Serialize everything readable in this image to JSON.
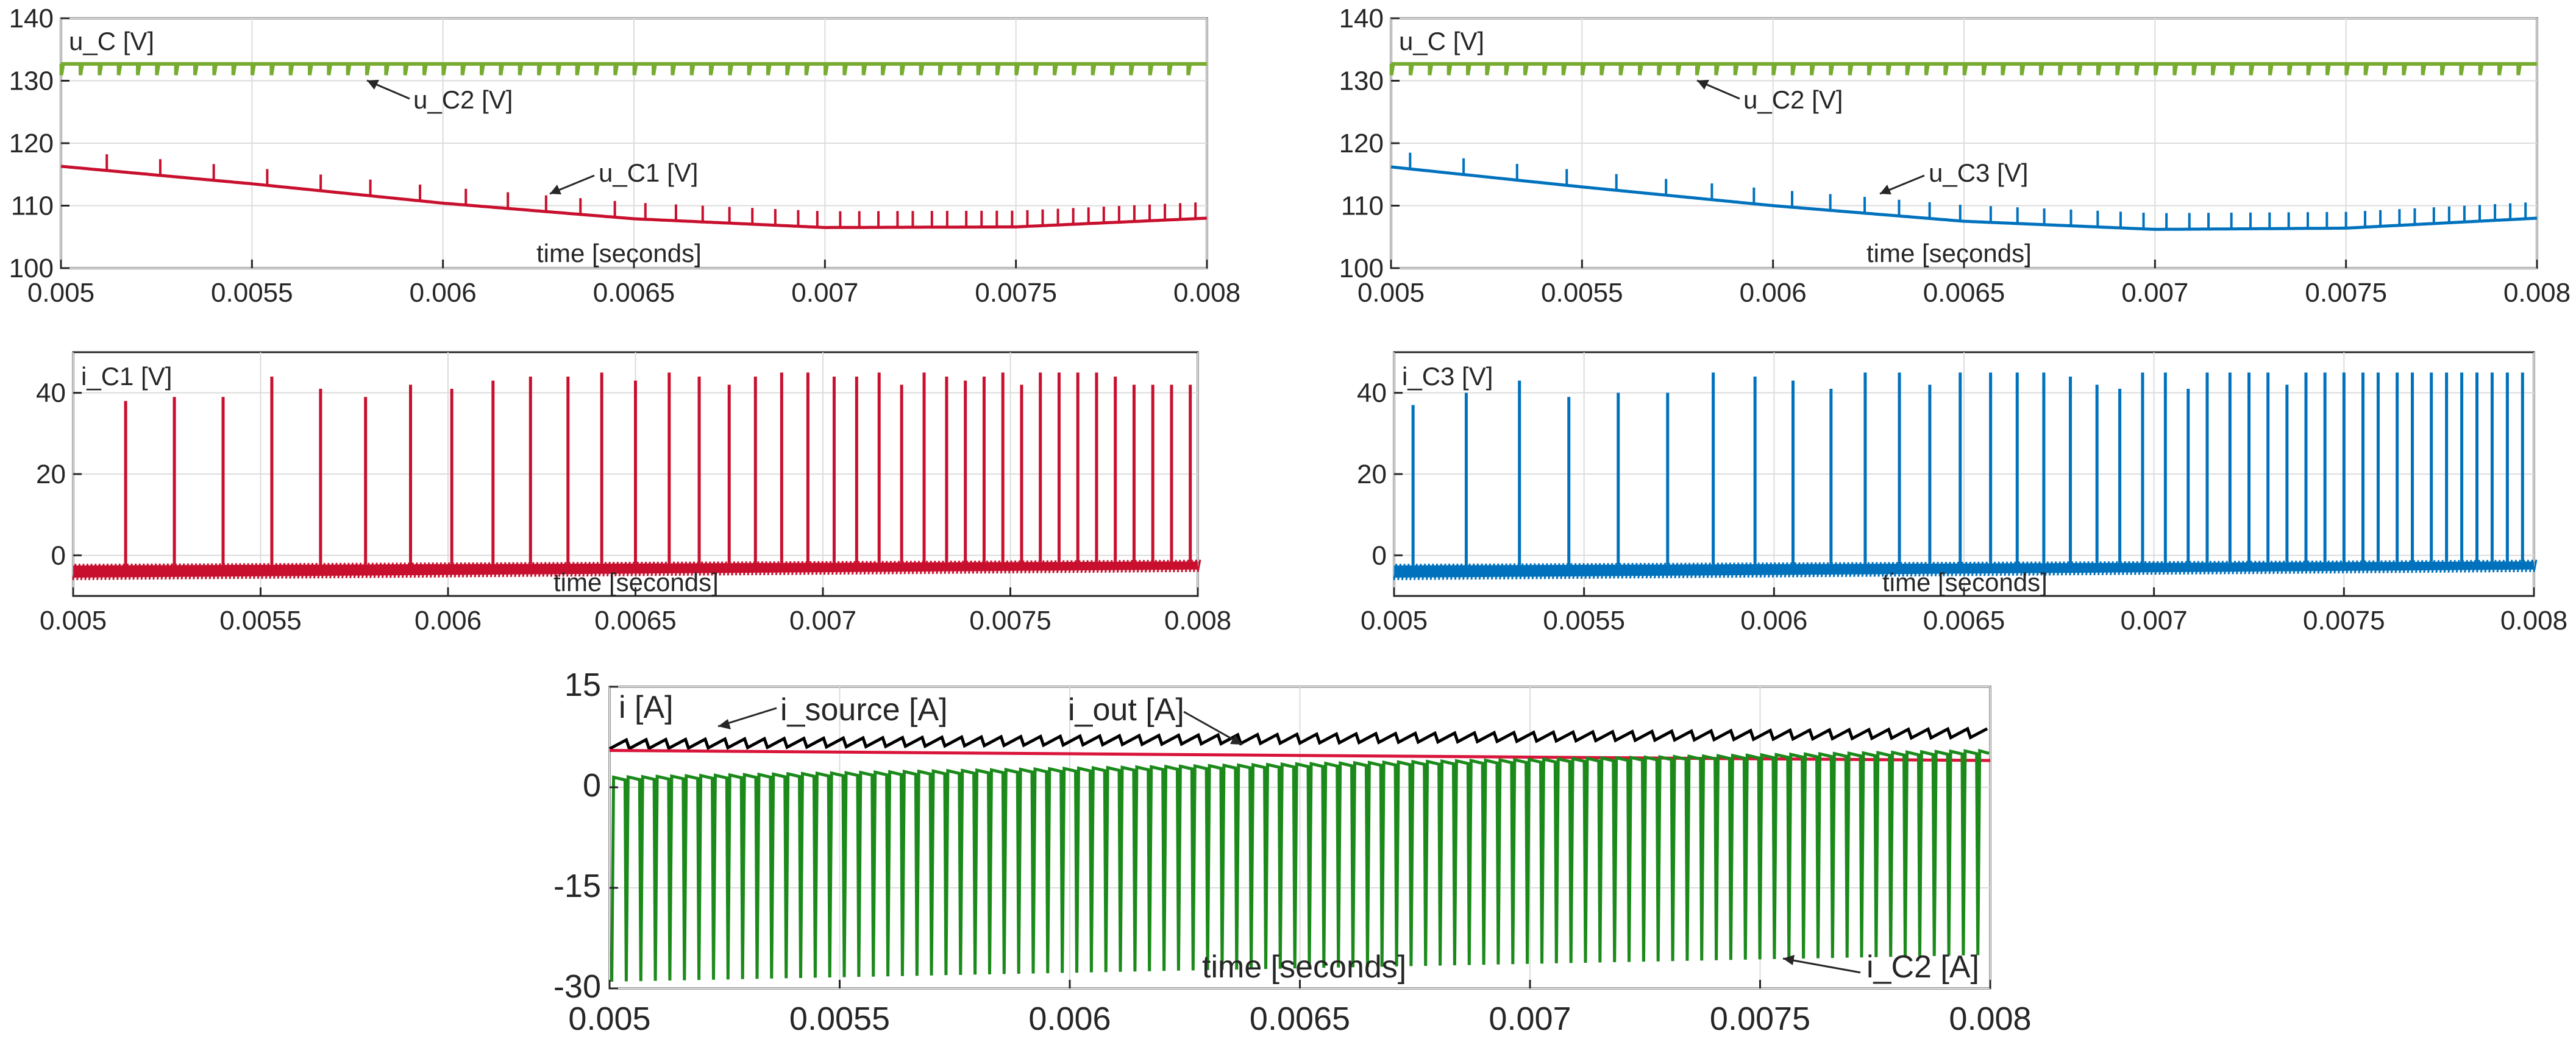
{
  "colors": {
    "u_C2": "#77AC30",
    "u_C1": "#C8102E",
    "u_C3": "#0072BD",
    "i_source": "#000000",
    "i_out": "#D9143A",
    "i_C2": "#1B8A1B",
    "axis": "#262626",
    "grid": "#DCDCDC"
  },
  "chart_data": [
    {
      "id": "voltage-left",
      "type": "line",
      "title": "",
      "ylabel_in_plot": "u_C [V]",
      "xlabel": "time [seconds]",
      "xlim": [
        0.005,
        0.008
      ],
      "ylim": [
        100,
        140
      ],
      "xticks": [
        0.005,
        0.0055,
        0.006,
        0.0065,
        0.007,
        0.0075,
        0.008
      ],
      "xtick_labels": [
        "0.005",
        "0.0055",
        "0.006",
        "0.0065",
        "0.007",
        "0.0075",
        "0.008"
      ],
      "yticks": [
        100,
        110,
        120,
        130,
        140
      ],
      "ytick_labels": [
        "100",
        "110",
        "120",
        "130",
        "140"
      ],
      "series": [
        {
          "name": "u_C2 [V]",
          "color_key": "u_C2",
          "kind": "flat_ripple",
          "level": 132.7,
          "dip": 1.8,
          "pulses": 60
        },
        {
          "name": "u_C1 [V]",
          "color_key": "u_C1",
          "kind": "curve_spikes",
          "x": [
            0.005,
            0.0055,
            0.006,
            0.0065,
            0.007,
            0.0075,
            0.008
          ],
          "y": [
            116.3,
            113.5,
            110.4,
            107.9,
            106.5,
            106.6,
            108.0
          ],
          "spike_times": [
            0.00512,
            0.00526,
            0.0054,
            0.00554,
            0.00568,
            0.00581,
            0.00594,
            0.00606,
            0.00617,
            0.00627,
            0.00636,
            0.00645,
            0.00653,
            0.00661,
            0.00668,
            0.00675,
            0.00681,
            0.00687,
            0.00693,
            0.00698,
            0.00704,
            0.00709,
            0.00714,
            0.00719,
            0.00723,
            0.00728,
            0.00732,
            0.00737,
            0.00741,
            0.00745,
            0.00749,
            0.00753,
            0.00757,
            0.00761,
            0.00765,
            0.00769,
            0.00773,
            0.00777,
            0.00781,
            0.00785,
            0.00789,
            0.00793,
            0.00797
          ],
          "spike_height": 2.6
        }
      ],
      "annotations": [
        "u_C2 [V]",
        "u_C1 [V]"
      ]
    },
    {
      "id": "voltage-right",
      "type": "line",
      "title": "",
      "ylabel_in_plot": "u_C [V]",
      "xlabel": "time [seconds]",
      "xlim": [
        0.005,
        0.008
      ],
      "ylim": [
        100,
        140
      ],
      "xticks": [
        0.005,
        0.0055,
        0.006,
        0.0065,
        0.007,
        0.0075,
        0.008
      ],
      "xtick_labels": [
        "0.005",
        "0.0055",
        "0.006",
        "0.0065",
        "0.007",
        "0.0075",
        "0.008"
      ],
      "yticks": [
        100,
        110,
        120,
        130,
        140
      ],
      "ytick_labels": [
        "100",
        "110",
        "120",
        "130",
        "140"
      ],
      "series": [
        {
          "name": "u_C2 [V]",
          "color_key": "u_C2",
          "kind": "flat_ripple",
          "level": 132.7,
          "dip": 1.8,
          "pulses": 60
        },
        {
          "name": "u_C3 [V]",
          "color_key": "u_C3",
          "kind": "curve_spikes",
          "x": [
            0.005,
            0.0055,
            0.006,
            0.0065,
            0.007,
            0.0075,
            0.008
          ],
          "y": [
            116.2,
            113.0,
            110.0,
            107.5,
            106.2,
            106.4,
            108.0
          ],
          "spike_times": [
            0.00505,
            0.00519,
            0.00533,
            0.00546,
            0.00559,
            0.00572,
            0.00584,
            0.00595,
            0.00605,
            0.00615,
            0.00624,
            0.00633,
            0.00641,
            0.00649,
            0.00657,
            0.00664,
            0.00671,
            0.00678,
            0.00685,
            0.00691,
            0.00697,
            0.00703,
            0.00709,
            0.00714,
            0.0072,
            0.00725,
            0.0073,
            0.00735,
            0.0074,
            0.00745,
            0.0075,
            0.00755,
            0.00759,
            0.00764,
            0.00768,
            0.00773,
            0.00777,
            0.00781,
            0.00785,
            0.00789,
            0.00793,
            0.00797
          ],
          "spike_height": 2.6
        }
      ],
      "annotations": [
        "u_C2 [V]",
        "u_C3 [V]"
      ]
    },
    {
      "id": "current-left",
      "type": "line",
      "title": "",
      "ylabel_in_plot": "i_C1 [V]",
      "xlabel": "time [seconds]",
      "xlim": [
        0.005,
        0.008
      ],
      "ylim": [
        -10,
        50
      ],
      "xticks": [
        0.005,
        0.0055,
        0.006,
        0.0065,
        0.007,
        0.0075,
        0.008
      ],
      "xtick_labels": [
        "0.005",
        "0.0055",
        "0.006",
        "0.0065",
        "0.007",
        "0.0075",
        "0.008"
      ],
      "yticks": [
        0,
        20,
        40
      ],
      "ytick_labels": [
        "0",
        "20",
        "40"
      ],
      "series": [
        {
          "name": "i_C1 [V]",
          "color_key": "u_C1",
          "kind": "spike_train",
          "base_bottom": [
            -5.5,
            -3.5
          ],
          "base_top": [
            -2.5,
            -1.5
          ],
          "spike_times": [
            0.00514,
            0.00527,
            0.0054,
            0.00553,
            0.00566,
            0.00578,
            0.0059,
            0.00601,
            0.00612,
            0.00622,
            0.00632,
            0.00641,
            0.0065,
            0.00659,
            0.00667,
            0.00675,
            0.00682,
            0.00689,
            0.00696,
            0.00703,
            0.00709,
            0.00715,
            0.00721,
            0.00727,
            0.00733,
            0.00738,
            0.00743,
            0.00748,
            0.00753,
            0.00758,
            0.00763,
            0.00768,
            0.00773,
            0.00778,
            0.00783,
            0.00788,
            0.00793,
            0.00798
          ],
          "spike_peaks": [
            38,
            39,
            39,
            44,
            41,
            39,
            42,
            41,
            43,
            44,
            44,
            45,
            43,
            45,
            44,
            42,
            44,
            45,
            45,
            44,
            44,
            45,
            42,
            45,
            44,
            43,
            44,
            45,
            42,
            45,
            45,
            45,
            45,
            44,
            42,
            42,
            42,
            42
          ]
        }
      ]
    },
    {
      "id": "current-right",
      "type": "line",
      "title": "",
      "ylabel_in_plot": "i_C3 [V]",
      "xlabel": "time [seconds]",
      "xlim": [
        0.005,
        0.008
      ],
      "ylim": [
        -10,
        50
      ],
      "xticks": [
        0.005,
        0.0055,
        0.006,
        0.0065,
        0.007,
        0.0075,
        0.008
      ],
      "xtick_labels": [
        "0.005",
        "0.0055",
        "0.006",
        "0.0065",
        "0.007",
        "0.0075",
        "0.008"
      ],
      "yticks": [
        0,
        20,
        40
      ],
      "ytick_labels": [
        "0",
        "20",
        "40"
      ],
      "series": [
        {
          "name": "i_C3 [V]",
          "color_key": "u_C3",
          "kind": "spike_train",
          "base_bottom": [
            -5.5,
            -3.5
          ],
          "base_top": [
            -2.5,
            -1.5
          ],
          "spike_times": [
            0.00505,
            0.00519,
            0.00533,
            0.00546,
            0.00559,
            0.00572,
            0.00584,
            0.00595,
            0.00605,
            0.00615,
            0.00624,
            0.00633,
            0.00641,
            0.00649,
            0.00657,
            0.00664,
            0.00671,
            0.00678,
            0.00685,
            0.00691,
            0.00697,
            0.00703,
            0.00709,
            0.00714,
            0.0072,
            0.00725,
            0.0073,
            0.00735,
            0.0074,
            0.00745,
            0.0075,
            0.00755,
            0.00759,
            0.00764,
            0.00768,
            0.00773,
            0.00777,
            0.00781,
            0.00785,
            0.00789,
            0.00793,
            0.00797
          ],
          "spike_peaks": [
            37,
            40,
            43,
            39,
            40,
            40,
            45,
            44,
            43,
            41,
            45,
            45,
            42,
            45,
            45,
            45,
            45,
            44,
            42,
            41,
            45,
            45,
            41,
            45,
            45,
            45,
            45,
            42,
            45,
            45,
            45,
            45,
            45,
            45,
            45,
            45,
            45,
            45,
            45,
            45,
            45,
            45
          ]
        }
      ]
    },
    {
      "id": "currents-bottom",
      "type": "line",
      "title": "",
      "ylabel_in_plot": "i [A]",
      "xlabel": "time [seconds]",
      "xlim": [
        0.005,
        0.008
      ],
      "ylim": [
        -30,
        15
      ],
      "xticks": [
        0.005,
        0.0055,
        0.006,
        0.0065,
        0.007,
        0.0075,
        0.008
      ],
      "xtick_labels": [
        "0.005",
        "0.0055",
        "0.006",
        "0.0065",
        "0.007",
        "0.0075",
        "0.008"
      ],
      "yticks": [
        -30,
        -15,
        0,
        15
      ],
      "ytick_labels": [
        "-30",
        "-15",
        "0",
        "15"
      ],
      "series": [
        {
          "name": "i_source [A]",
          "color_key": "i_source",
          "kind": "sawtooth",
          "start": 6.4,
          "end": 8.1,
          "amp": 1.3,
          "count": 70
        },
        {
          "name": "i_out [A]",
          "color_key": "i_out",
          "kind": "line",
          "x": [
            0.005,
            0.008
          ],
          "y": [
            5.5,
            4.0
          ]
        },
        {
          "name": "i_C2 [A]",
          "color_key": "i_C2",
          "kind": "dip_train",
          "count": 95,
          "top_start": 1.5,
          "top_end": 5.5,
          "dip_start": -29,
          "dip_end": -25
        }
      ],
      "annotations": [
        "i_source [A]",
        "i_out [A]",
        "i_C2 [A]"
      ]
    }
  ]
}
